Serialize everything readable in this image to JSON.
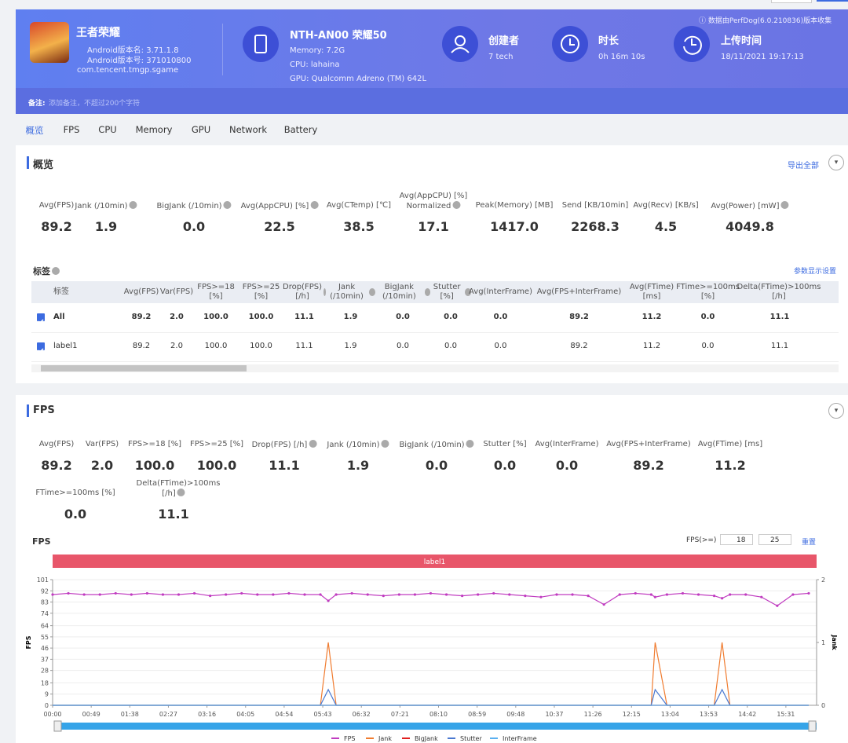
{
  "header": {
    "notice": "数据由PerfDog(6.0.210836)版本收集",
    "app": {
      "name": "王者荣耀",
      "version_name": "Android版本名: 3.71.1.8",
      "version_code": "Android版本号: 371010800",
      "package": "com.tencent.tmgp.sgame"
    },
    "device": {
      "name": "NTH-AN00 荣耀50",
      "memory": "Memory: 7.2G",
      "cpu": "CPU: lahaina",
      "gpu": "GPU: Qualcomm Adreno (TM) 642L"
    },
    "info": [
      {
        "label": "创建者",
        "value": "7 tech"
      },
      {
        "label": "时长",
        "value": "0h 16m 10s"
      },
      {
        "label": "上传时间",
        "value": "18/11/2021 19:17:13"
      }
    ],
    "note_label": "备注:",
    "note_placeholder": "添加备注，不超过200个字符"
  },
  "tabs": [
    "概览",
    "FPS",
    "CPU",
    "Memory",
    "GPU",
    "Network",
    "Battery"
  ],
  "overview": {
    "title": "概览",
    "export": "导出全部",
    "metrics": [
      {
        "label": "Avg(FPS)",
        "value": "89.2",
        "help": false
      },
      {
        "label": "Jank (/10min)",
        "value": "1.9",
        "help": true
      },
      {
        "label": "BigJank (/10min)",
        "value": "0.0",
        "help": true
      },
      {
        "label": "Avg(AppCPU) [%]",
        "value": "22.5",
        "help": true
      },
      {
        "label": "Avg(CTemp) [℃]",
        "value": "38.5",
        "help": false
      },
      {
        "label": "Avg(AppCPU) [%] Normalized",
        "value": "17.1",
        "help": true
      },
      {
        "label": "Peak(Memory) [MB]",
        "value": "1417.0",
        "help": false
      },
      {
        "label": "Send [KB/10min]",
        "value": "2268.3",
        "help": false
      },
      {
        "label": "Avg(Recv) [KB/s]",
        "value": "4.5",
        "help": false
      },
      {
        "label": "Avg(Power) [mW]",
        "value": "4049.8",
        "help": true
      }
    ]
  },
  "tags": {
    "title": "标签",
    "settings": "参数显示设置",
    "columns": [
      {
        "label": "标签",
        "help": false
      },
      {
        "label": "Avg(FPS)",
        "help": false
      },
      {
        "label": "Var(FPS)",
        "help": false
      },
      {
        "label": "FPS>=18 [%]",
        "help": false
      },
      {
        "label": "FPS>=25 [%]",
        "help": false
      },
      {
        "label": "Drop(FPS) [/h]",
        "help": true
      },
      {
        "label": "Jank (/10min)",
        "help": true
      },
      {
        "label": "BigJank (/10min)",
        "help": true
      },
      {
        "label": "Stutter [%]",
        "help": true
      },
      {
        "label": "Avg(InterFrame)",
        "help": false
      },
      {
        "label": "Avg(FPS+InterFrame)",
        "help": false
      },
      {
        "label": "Avg(FTime) [ms]",
        "help": false
      },
      {
        "label": "FTime>=100ms [%]",
        "help": false
      },
      {
        "label": "Delta(FTime)>100ms [/h]",
        "help": true
      }
    ],
    "rows": [
      {
        "checked": true,
        "bold": true,
        "cells": [
          "All",
          "89.2",
          "2.0",
          "100.0",
          "100.0",
          "11.1",
          "1.9",
          "0.0",
          "0.0",
          "0.0",
          "89.2",
          "11.2",
          "0.0",
          "11.1"
        ]
      },
      {
        "checked": true,
        "bold": false,
        "cells": [
          "label1",
          "89.2",
          "2.0",
          "100.0",
          "100.0",
          "11.1",
          "1.9",
          "0.0",
          "0.0",
          "0.0",
          "89.2",
          "11.2",
          "0.0",
          "11.1"
        ]
      }
    ]
  },
  "fps_section": {
    "title": "FPS",
    "metrics": [
      {
        "label": "Avg(FPS)",
        "value": "89.2",
        "help": false
      },
      {
        "label": "Var(FPS)",
        "value": "2.0",
        "help": false
      },
      {
        "label": "FPS>=18 [%]",
        "value": "100.0",
        "help": false
      },
      {
        "label": "FPS>=25 [%]",
        "value": "100.0",
        "help": false
      },
      {
        "label": "Drop(FPS) [/h]",
        "value": "11.1",
        "help": true
      },
      {
        "label": "Jank (/10min)",
        "value": "1.9",
        "help": true
      },
      {
        "label": "BigJank (/10min)",
        "value": "0.0",
        "help": true
      },
      {
        "label": "Stutter [%]",
        "value": "0.0",
        "help": false
      },
      {
        "label": "Avg(InterFrame)",
        "value": "0.0",
        "help": false
      },
      {
        "label": "Avg(FPS+InterFrame)",
        "value": "89.2",
        "help": false
      },
      {
        "label": "Avg(FTime) [ms]",
        "value": "11.2",
        "help": false
      },
      {
        "label": "FTime>=100ms [%]",
        "value": "0.0",
        "help": false
      },
      {
        "label": "Delta(FTime)>100ms [/h]",
        "value": "11.1",
        "help": true
      }
    ],
    "threshold_label": "FPS(>=)",
    "thresholds": [
      "18",
      "25"
    ],
    "reset": "重置"
  },
  "chart_data": {
    "type": "line",
    "title": "FPS",
    "band_label": "label1",
    "y_label": "FPS",
    "y2_label": "Jank",
    "x": [
      0,
      20,
      40,
      60,
      80,
      100,
      120,
      140,
      160,
      180,
      200,
      220,
      240,
      260,
      280,
      300,
      320,
      340,
      350,
      360,
      380,
      400,
      420,
      440,
      460,
      480,
      500,
      520,
      540,
      560,
      580,
      600,
      620,
      640,
      660,
      680,
      700,
      720,
      740,
      760,
      765,
      780,
      800,
      820,
      840,
      850,
      860,
      880,
      900,
      920,
      940,
      960
    ],
    "series": [
      {
        "name": "FPS",
        "color": "#c03cc0",
        "values": [
          89,
          90,
          89,
          89,
          90,
          89,
          90,
          89,
          89,
          90,
          88,
          89,
          90,
          89,
          89,
          90,
          89,
          89,
          84,
          89,
          90,
          89,
          88,
          89,
          89,
          90,
          89,
          88,
          89,
          90,
          89,
          88,
          87,
          89,
          89,
          88,
          81,
          89,
          90,
          89,
          87,
          89,
          90,
          89,
          88,
          86,
          89,
          89,
          87,
          80,
          89,
          90
        ]
      },
      {
        "name": "Jank",
        "color": "#f07c30",
        "axis": "y2",
        "values": [
          0,
          0,
          0,
          0,
          0,
          0,
          0,
          0,
          0,
          0,
          0,
          0,
          0,
          0,
          0,
          0,
          0,
          0,
          1,
          0,
          0,
          0,
          0,
          0,
          0,
          0,
          0,
          0,
          0,
          0,
          0,
          0,
          0,
          0,
          0,
          0,
          0,
          0,
          0,
          0,
          1,
          0,
          0,
          0,
          0,
          1,
          0,
          0,
          0,
          0,
          0,
          0
        ]
      },
      {
        "name": "BigJank",
        "color": "#e02020",
        "axis": "y2",
        "values": [
          0,
          0,
          0,
          0,
          0,
          0,
          0,
          0,
          0,
          0,
          0,
          0,
          0,
          0,
          0,
          0,
          0,
          0,
          0,
          0,
          0,
          0,
          0,
          0,
          0,
          0,
          0,
          0,
          0,
          0,
          0,
          0,
          0,
          0,
          0,
          0,
          0,
          0,
          0,
          0,
          0,
          0,
          0,
          0,
          0,
          0,
          0,
          0,
          0,
          0,
          0,
          0
        ]
      },
      {
        "name": "Stutter",
        "color": "#4a78d0",
        "axis": "y2",
        "values": [
          0,
          0,
          0,
          0,
          0,
          0,
          0,
          0,
          0,
          0,
          0,
          0,
          0,
          0,
          0,
          0,
          0,
          0,
          0.25,
          0,
          0,
          0,
          0,
          0,
          0,
          0,
          0,
          0,
          0,
          0,
          0,
          0,
          0,
          0,
          0,
          0,
          0,
          0,
          0,
          0,
          0.25,
          0,
          0,
          0,
          0,
          0.25,
          0,
          0,
          0,
          0,
          0,
          0
        ]
      },
      {
        "name": "InterFrame",
        "color": "#5ab0f0",
        "axis": "y2",
        "values": [
          0,
          0,
          0,
          0,
          0,
          0,
          0,
          0,
          0,
          0,
          0,
          0,
          0,
          0,
          0,
          0,
          0,
          0,
          0,
          0,
          0,
          0,
          0,
          0,
          0,
          0,
          0,
          0,
          0,
          0,
          0,
          0,
          0,
          0,
          0,
          0,
          0,
          0,
          0,
          0,
          0,
          0,
          0,
          0,
          0,
          0,
          0,
          0,
          0,
          0,
          0,
          0
        ]
      }
    ],
    "xlim": [
      0,
      970
    ],
    "xticks": [
      {
        "value": 0,
        "label": "00:00"
      },
      {
        "value": 49,
        "label": "00:49"
      },
      {
        "value": 98,
        "label": "01:38"
      },
      {
        "value": 147,
        "label": "02:27"
      },
      {
        "value": 196,
        "label": "03:16"
      },
      {
        "value": 245,
        "label": "04:05"
      },
      {
        "value": 294,
        "label": "04:54"
      },
      {
        "value": 343,
        "label": "05:43"
      },
      {
        "value": 392,
        "label": "06:32"
      },
      {
        "value": 441,
        "label": "07:21"
      },
      {
        "value": 490,
        "label": "08:10"
      },
      {
        "value": 539,
        "label": "08:59"
      },
      {
        "value": 588,
        "label": "09:48"
      },
      {
        "value": 637,
        "label": "10:37"
      },
      {
        "value": 686,
        "label": "11:26"
      },
      {
        "value": 735,
        "label": "12:15"
      },
      {
        "value": 784,
        "label": "13:04"
      },
      {
        "value": 833,
        "label": "13:53"
      },
      {
        "value": 882,
        "label": "14:42"
      },
      {
        "value": 931,
        "label": "15:31"
      }
    ],
    "ylim": [
      0,
      101
    ],
    "yticks": [
      0,
      9,
      18,
      28,
      37,
      46,
      55,
      64,
      74,
      83,
      92,
      101
    ],
    "y2lim": [
      0,
      2
    ],
    "y2ticks": [
      0,
      1,
      2
    ],
    "grid": true
  }
}
